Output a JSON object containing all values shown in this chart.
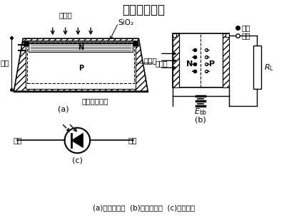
{
  "title": "硅光电二极管",
  "title_fontsize": 12,
  "subtitle": "(a)结构原理；  (b)工作原理；  (c)电路符号",
  "subtitle_fontsize": 8,
  "background": "#ffffff",
  "label_a": "(a)",
  "label_b": "(b)",
  "label_c": "(c)",
  "text_rudiao": "入射光",
  "text_sio2": "SiO₂",
  "text_haojinqu": "耗尽区",
  "text_dianj": "电极",
  "text_electrode": "镀镍蒸铝电极",
  "text_N": "N",
  "text_P": "P",
  "text_qianji": "前极",
  "text_houji": "后极",
  "text_electron": "电子",
  "text_hole": "空穴",
  "text_Ebb": "$E_{\\rm bb}$",
  "text_RL": "$R_{\\rm L}$"
}
